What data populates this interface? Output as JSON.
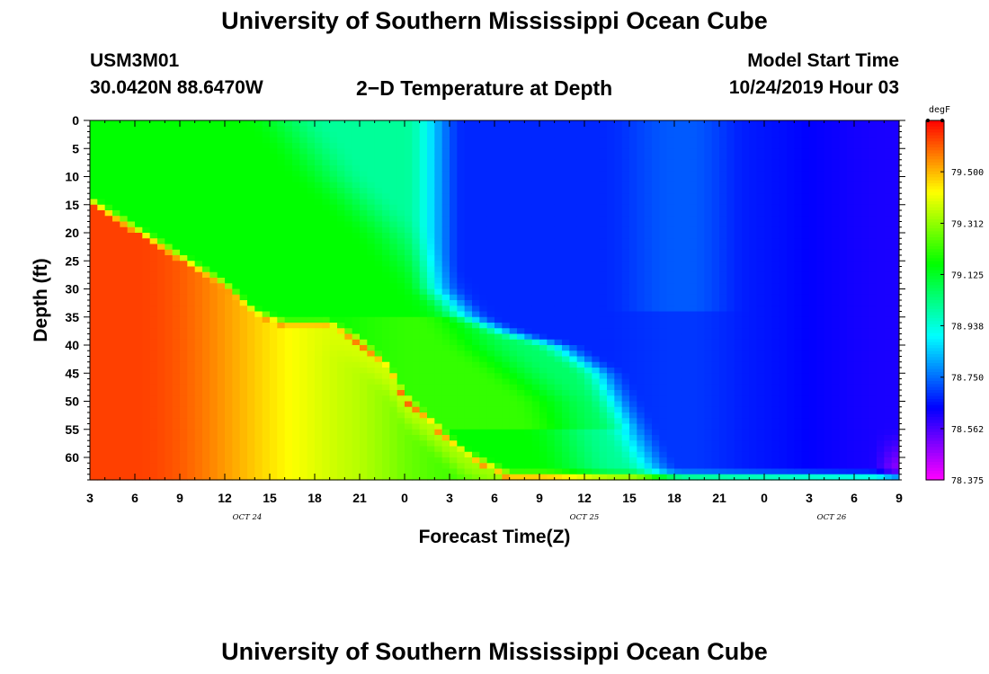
{
  "header": {
    "title_top": "University of Southern Mississippi Ocean Cube",
    "station_id": "USM3M01",
    "station_coords": "30.0420N 88.6470W",
    "plot_title": "2−D Temperature at Depth",
    "model_start_label": "Model Start Time",
    "model_start_value": "10/24/2019 Hour 03",
    "title_bottom": "University of Southern Mississippi Ocean Cube"
  },
  "chart_data": {
    "type": "heatmap",
    "title": "2−D Temperature at Depth",
    "xlabel": "Forecast Time(Z)",
    "ylabel": "Depth (ft)",
    "x_hours_range": [
      0,
      54
    ],
    "x_tick_labels": [
      "3",
      "6",
      "9",
      "12",
      "15",
      "18",
      "21",
      "0",
      "3",
      "6",
      "9",
      "12",
      "15",
      "18",
      "21",
      "0",
      "3",
      "6",
      "9"
    ],
    "date_labels": [
      {
        "text": "OCT  24",
        "hour": 10.5
      },
      {
        "text": "OCT  25",
        "hour": 33
      },
      {
        "text": "OCT  26",
        "hour": 49.5
      }
    ],
    "y_range": [
      0,
      64
    ],
    "y_tick_labels": [
      "0",
      "5",
      "10",
      "15",
      "20",
      "25",
      "30",
      "35",
      "40",
      "45",
      "50",
      "55",
      "60"
    ],
    "colorbar": {
      "unit": "degF",
      "range": [
        78.375,
        79.6875
      ],
      "tick_values": [
        79.5,
        79.312,
        79.125,
        78.938,
        78.75,
        78.562,
        78.375
      ],
      "tick_labels": [
        "79.500",
        "79.312",
        "79.125",
        "78.938",
        "78.750",
        "78.562",
        "78.375"
      ],
      "colors": [
        "#ff00ff",
        "#8000ff",
        "#0000ff",
        "#0080ff",
        "#00ffff",
        "#00ff80",
        "#00ff00",
        "#80ff00",
        "#ffff00",
        "#ff8000",
        "#ff0000"
      ]
    },
    "thermocline_depth_ft": [
      [
        0,
        15
      ],
      [
        3,
        20
      ],
      [
        6,
        25
      ],
      [
        9,
        30
      ],
      [
        11,
        35
      ],
      [
        13,
        37
      ],
      [
        16,
        37
      ],
      [
        18,
        40
      ],
      [
        20,
        45
      ],
      [
        21,
        50
      ],
      [
        23,
        55
      ],
      [
        25,
        60
      ],
      [
        28,
        64
      ]
    ],
    "surface_transition_hours": [
      [
        0,
        13
      ],
      [
        10,
        16
      ],
      [
        20,
        20
      ],
      [
        30,
        23
      ],
      [
        40,
        26
      ],
      [
        50,
        31
      ],
      [
        64,
        33
      ]
    ],
    "deep_boundary_hours": [
      [
        30,
        23
      ],
      [
        35,
        25
      ],
      [
        38,
        28
      ],
      [
        40,
        31
      ],
      [
        45,
        34
      ],
      [
        50,
        35
      ],
      [
        55,
        36
      ],
      [
        60,
        37
      ],
      [
        64,
        38
      ]
    ]
  }
}
